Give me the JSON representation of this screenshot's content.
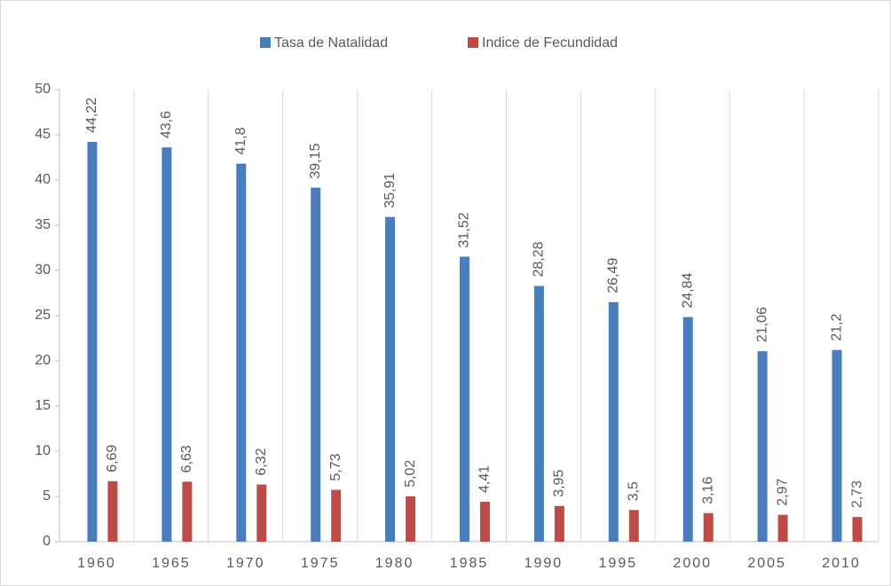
{
  "chart_data": {
    "type": "bar",
    "categories": [
      "1960",
      "1965",
      "1970",
      "1975",
      "1980",
      "1985",
      "1990",
      "1995",
      "2000",
      "2005",
      "2010"
    ],
    "series": [
      {
        "name": "Tasa de Natalidad",
        "color": "#4a7ebb",
        "values": [
          44.22,
          43.6,
          41.8,
          39.15,
          35.91,
          31.52,
          28.28,
          26.49,
          24.84,
          21.06,
          21.2
        ],
        "value_labels": [
          "44,22",
          "43,6",
          "41,8",
          "39,15",
          "35,91",
          "31,52",
          "28,28",
          "26,49",
          "24,84",
          "21,06",
          "21,2"
        ]
      },
      {
        "name": "Indice de Fecundidad",
        "color": "#be4b48",
        "values": [
          6.69,
          6.63,
          6.32,
          5.73,
          5.02,
          4.41,
          3.95,
          3.5,
          3.16,
          2.97,
          2.73
        ],
        "value_labels": [
          "6,69",
          "6,63",
          "6,32",
          "5,73",
          "5,02",
          "4,41",
          "3,95",
          "3,5",
          "3,16",
          "2,97",
          "2,73"
        ]
      }
    ],
    "ylim": [
      0,
      50
    ],
    "yticks": [
      0,
      5,
      10,
      15,
      20,
      25,
      30,
      35,
      40,
      45,
      50
    ],
    "legend": "top"
  }
}
